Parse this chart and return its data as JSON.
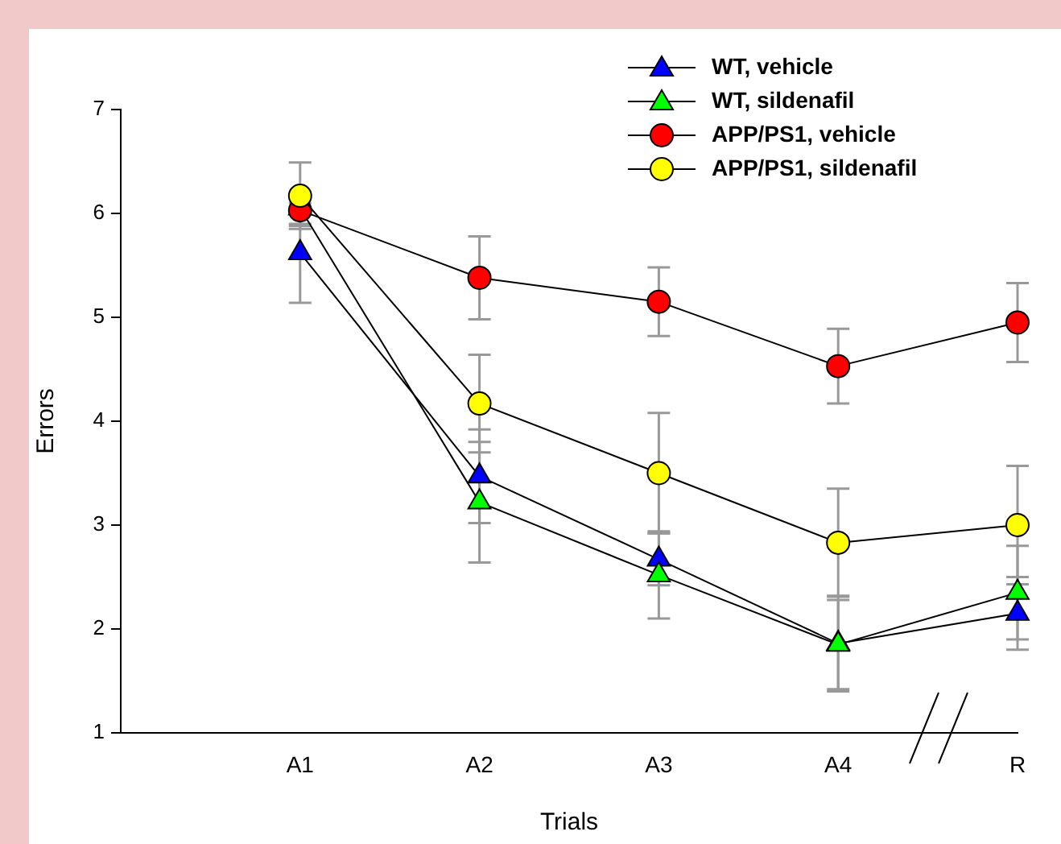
{
  "chart_data": {
    "type": "line",
    "xlabel": "Trials",
    "ylabel": "Errors",
    "categories": [
      "A1",
      "A2",
      "A3",
      "A4",
      "R"
    ],
    "ylim": [
      1,
      7
    ],
    "yticks": [
      1,
      2,
      3,
      4,
      5,
      6,
      7
    ],
    "grid": false,
    "legend": "top right",
    "series": [
      {
        "name": "WT, vehicle",
        "color": "#0000ff",
        "marker": "triangle",
        "values": [
          5.62,
          3.47,
          2.67,
          1.86,
          2.15
        ],
        "errors": [
          0.48,
          0.45,
          0.25,
          0.46,
          0.35
        ]
      },
      {
        "name": "WT, sildenafil",
        "color": "#00ff00",
        "marker": "triangle",
        "values": [
          6.05,
          3.22,
          2.52,
          1.85,
          2.35
        ],
        "errors": [
          0.15,
          0.58,
          0.42,
          0.43,
          0.45
        ]
      },
      {
        "name": "APP/PS1, vehicle",
        "color": "#ff0000",
        "marker": "circle",
        "values": [
          6.03,
          5.38,
          5.15,
          4.53,
          4.95
        ],
        "errors": [
          0.15,
          0.4,
          0.33,
          0.36,
          0.38
        ]
      },
      {
        "name": "APP/PS1, sildenafil",
        "color": "#ffff00",
        "marker": "circle",
        "values": [
          6.17,
          4.17,
          3.5,
          2.83,
          3.0
        ],
        "errors": [
          0.32,
          0.47,
          0.58,
          0.52,
          0.57
        ]
      }
    ]
  }
}
